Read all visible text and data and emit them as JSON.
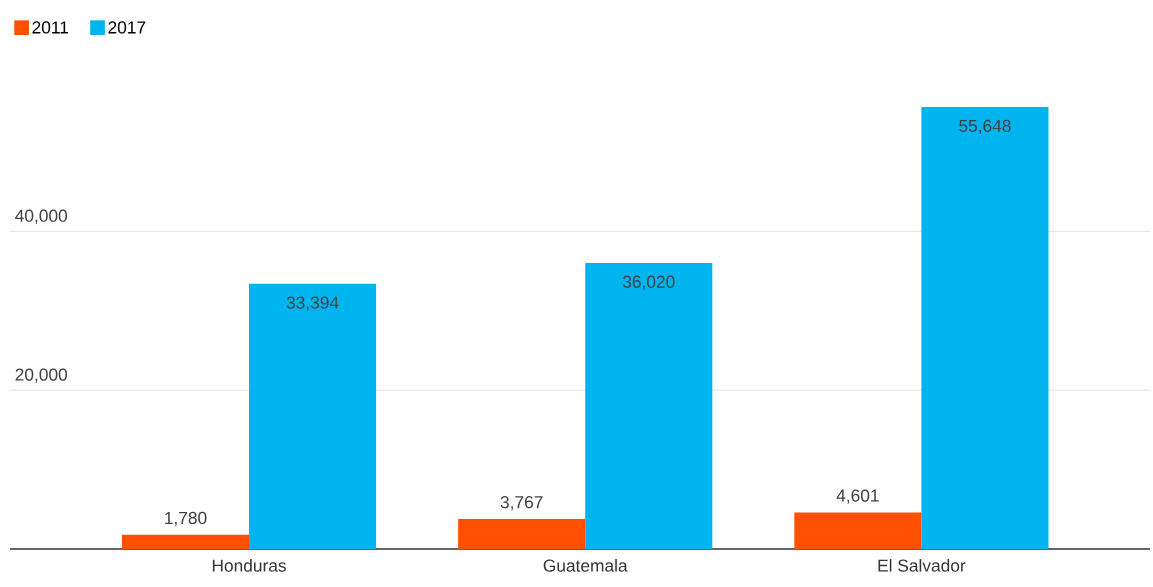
{
  "chart_data": {
    "type": "bar",
    "categories": [
      "Honduras",
      "Guatemala",
      "El Salvador"
    ],
    "series": [
      {
        "name": "2011",
        "color": "#ff4f00",
        "values": [
          1780,
          3767,
          4601
        ],
        "value_labels": [
          "1,780",
          "3,767",
          "4,601"
        ]
      },
      {
        "name": "2017",
        "color": "#00b4ef",
        "values": [
          33394,
          36020,
          55648
        ],
        "value_labels": [
          "33,394",
          "36,020",
          "55,648"
        ]
      }
    ],
    "ylim": [
      0,
      55648
    ],
    "yticks": [
      {
        "value": 20000,
        "label": "20,000"
      },
      {
        "value": 40000,
        "label": "40,000"
      }
    ],
    "grid": "y",
    "legend": "top left"
  }
}
